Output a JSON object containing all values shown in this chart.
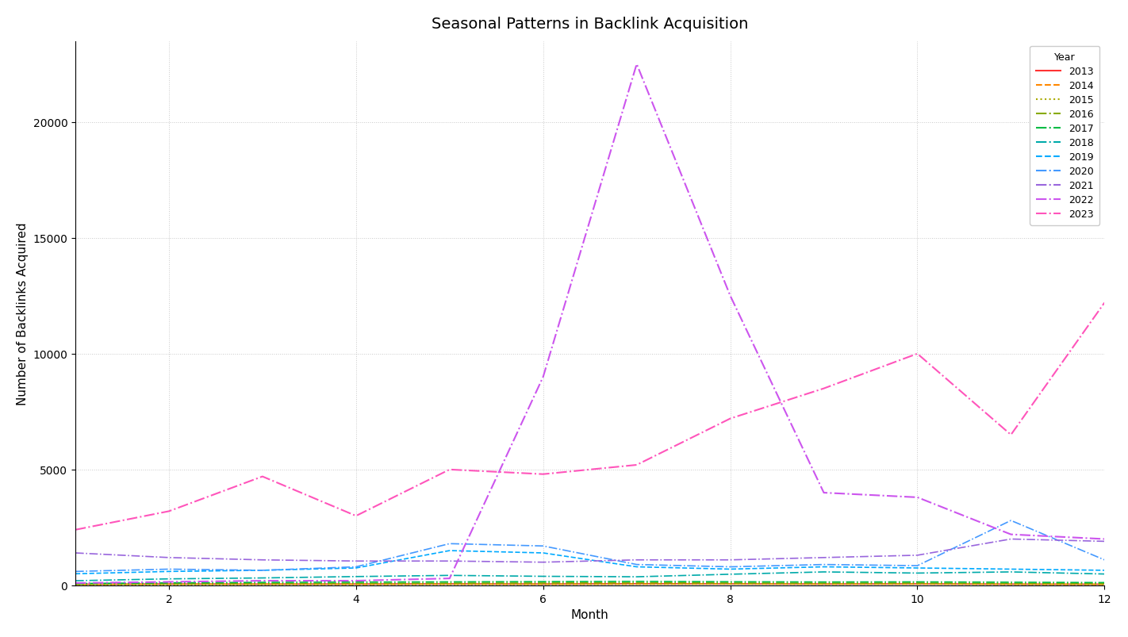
{
  "title": "Seasonal Patterns in Backlink Acquisition",
  "xlabel": "Month",
  "ylabel": "Number of Backlinks Acquired",
  "months": [
    1,
    2,
    3,
    4,
    5,
    6,
    7,
    8,
    9,
    10,
    11,
    12
  ],
  "series": {
    "2013": {
      "color": "#ff3333",
      "linestyle": "-",
      "values": [
        50,
        60,
        55,
        60,
        65,
        60,
        70,
        65,
        60,
        65,
        55,
        50
      ],
      "lw": 1.2
    },
    "2014": {
      "color": "#ff8800",
      "linestyle": "--",
      "values": [
        40,
        45,
        50,
        40,
        50,
        45,
        55,
        60,
        50,
        55,
        45,
        40
      ],
      "lw": 1.2
    },
    "2015": {
      "color": "#aaaa00",
      "linestyle": ":",
      "values": [
        25,
        30,
        35,
        45,
        40,
        45,
        50,
        55,
        50,
        55,
        45,
        40
      ],
      "lw": 1.2
    },
    "2016": {
      "color": "#88aa00",
      "linestyle": "-.",
      "values": [
        50,
        65,
        75,
        85,
        95,
        100,
        110,
        100,
        95,
        100,
        85,
        75
      ],
      "lw": 1.2
    },
    "2017": {
      "color": "#00bb44",
      "linestyle": "-.",
      "values": [
        80,
        110,
        130,
        140,
        150,
        160,
        170,
        155,
        145,
        150,
        135,
        120
      ],
      "lw": 1.2
    },
    "2018": {
      "color": "#00aaaa",
      "linestyle": "-.",
      "values": [
        200,
        280,
        320,
        380,
        430,
        390,
        370,
        480,
        580,
        530,
        580,
        490
      ],
      "lw": 1.2
    },
    "2019": {
      "color": "#00aaff",
      "linestyle": "--",
      "values": [
        500,
        600,
        650,
        750,
        1500,
        1400,
        800,
        700,
        800,
        750,
        700,
        650
      ],
      "lw": 1.2
    },
    "2020": {
      "color": "#4499ff",
      "linestyle": "-.",
      "values": [
        600,
        700,
        650,
        800,
        1800,
        1700,
        900,
        800,
        900,
        850,
        2800,
        1100
      ],
      "lw": 1.2
    },
    "2021": {
      "color": "#9966dd",
      "linestyle": "-.",
      "values": [
        1400,
        1200,
        1100,
        1050,
        1050,
        1000,
        1100,
        1100,
        1200,
        1300,
        2000,
        1900
      ],
      "lw": 1.2
    },
    "2022": {
      "color": "#cc55ee",
      "linestyle": "-.",
      "values": [
        100,
        150,
        200,
        200,
        300,
        9000,
        22500,
        12500,
        4000,
        3800,
        2200,
        2000
      ],
      "lw": 1.5
    },
    "2023": {
      "color": "#ff55bb",
      "linestyle": "-.",
      "values": [
        2400,
        3200,
        4700,
        3000,
        5000,
        4800,
        5200,
        7200,
        8500,
        10000,
        6500,
        12200
      ],
      "lw": 1.5
    }
  },
  "linestyle_legend": {
    "2013": [
      "-",
      "#ff3333"
    ],
    "2014": [
      "--",
      "#ff8800"
    ],
    "2015": [
      ":",
      "#aaaa00"
    ],
    "2016": [
      "-.",
      "#88aa00"
    ],
    "2017": [
      "-.",
      "#00bb44"
    ],
    "2018": [
      "-.",
      "#00aaaa"
    ],
    "2019": [
      "--",
      "#00aaff"
    ],
    "2020": [
      "-.",
      "#4499ff"
    ],
    "2021": [
      "-.",
      "#9966dd"
    ],
    "2022": [
      "-.",
      "#cc55ee"
    ],
    "2023": [
      "-.",
      "#ff55bb"
    ]
  },
  "ylim": [
    0,
    23500
  ],
  "yticks": [
    0,
    5000,
    10000,
    15000,
    20000
  ],
  "xticks": [
    2,
    4,
    6,
    8,
    10,
    12
  ],
  "legend_title": "Year",
  "background_color": "#ffffff",
  "grid_color": "#bbbbbb",
  "grid_linestyle": ":"
}
